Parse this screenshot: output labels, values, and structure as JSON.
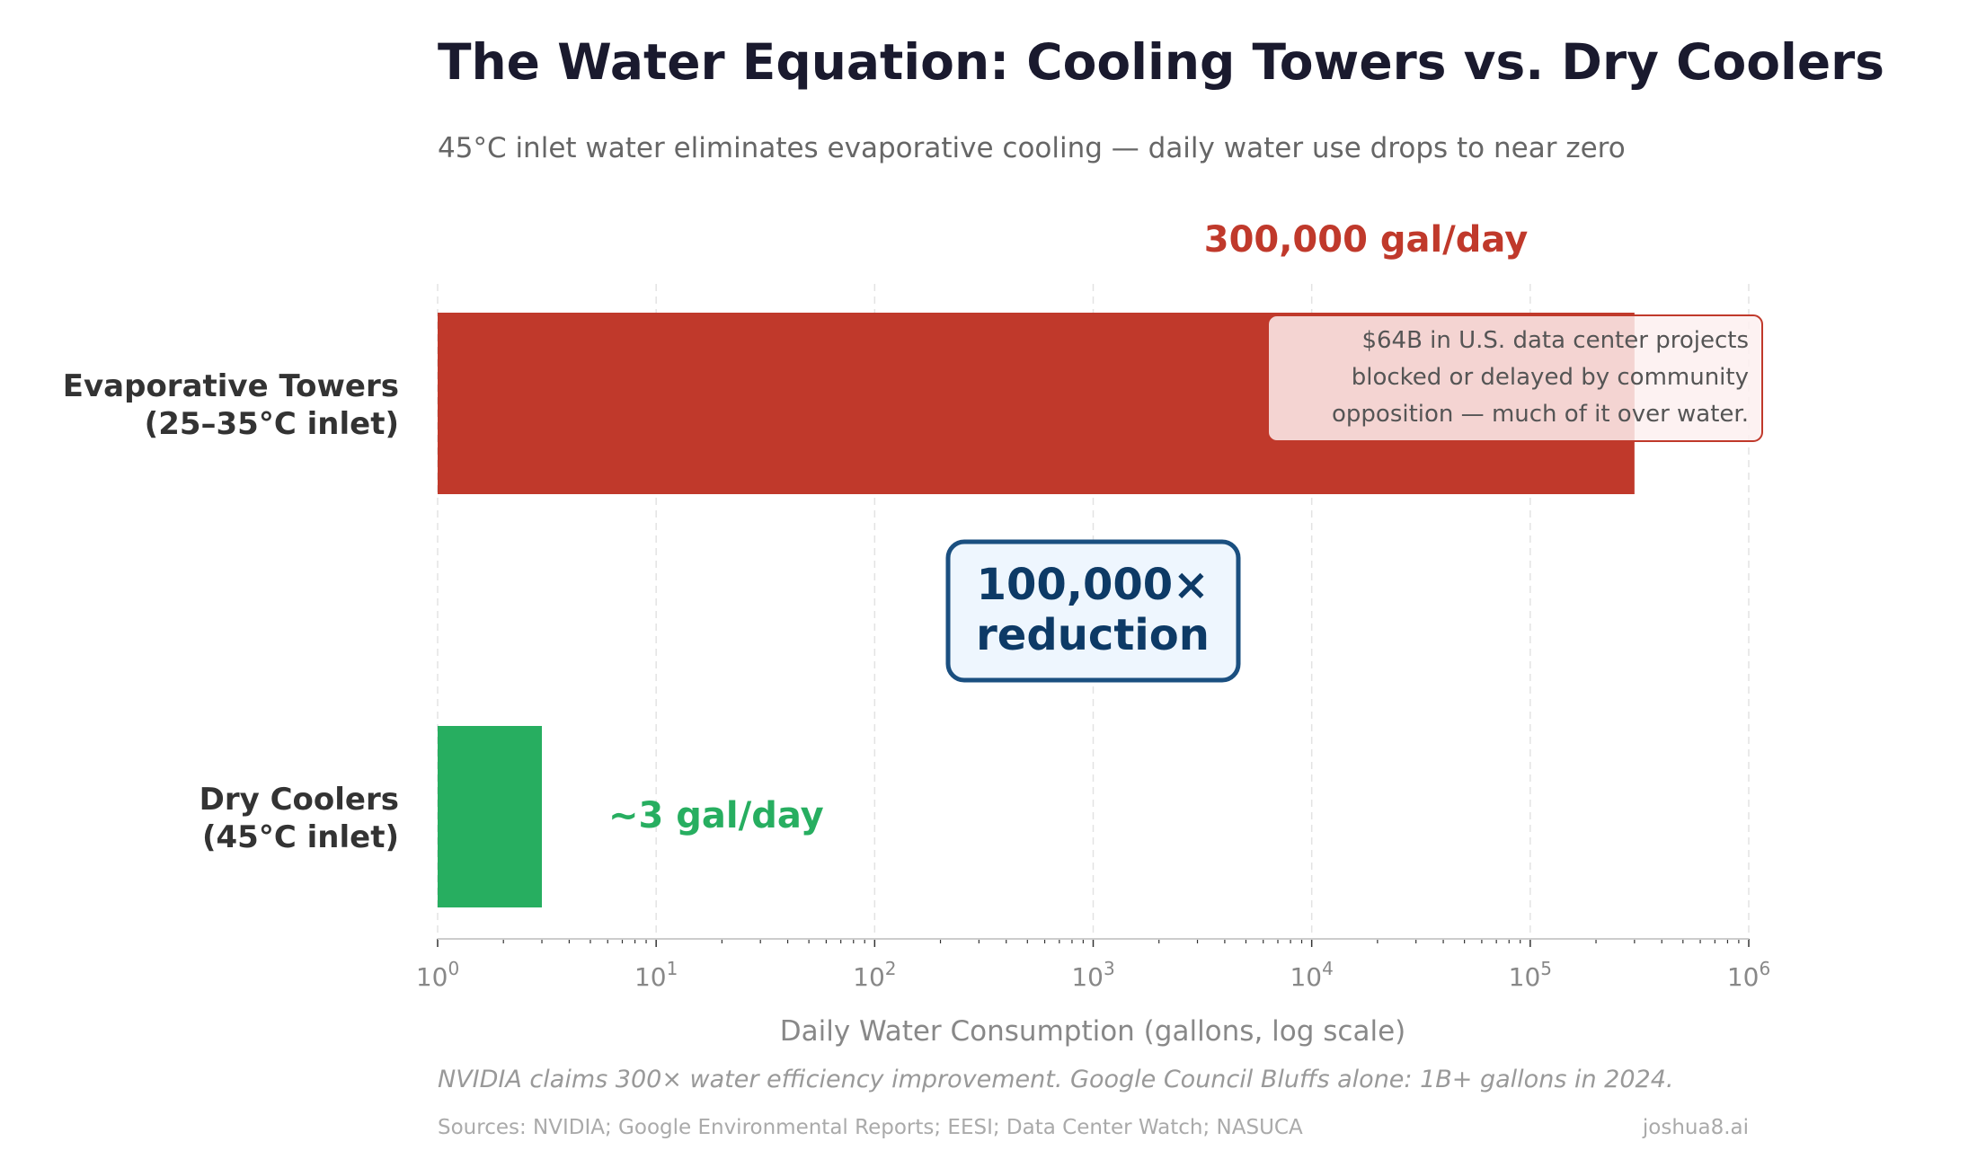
{
  "chart_data": {
    "type": "bar",
    "orientation": "horizontal",
    "title": "The Water Equation: Cooling Towers vs. Dry Coolers",
    "subtitle": "45°C inlet water eliminates evaporative cooling — daily water use drops to near zero",
    "categories": [
      "Evaporative Towers\n(25–35°C inlet)",
      "Dry Coolers\n(45°C inlet)"
    ],
    "category_lines": [
      [
        "Evaporative Towers",
        "(25–35°C inlet)"
      ],
      [
        "Dry Coolers",
        "(45°C inlet)"
      ]
    ],
    "values": [
      300000,
      3
    ],
    "colors": [
      "#c0392b",
      "#27ae60"
    ],
    "value_labels": [
      "300,000 gal/day",
      "~3 gal/day"
    ],
    "xlabel": "Daily Water Consumption (gallons, log scale)",
    "xscale": "log",
    "xlim": [
      1,
      1000000
    ],
    "xticks": [
      {
        "base": "10",
        "exp": "0",
        "value": 1
      },
      {
        "base": "10",
        "exp": "1",
        "value": 10
      },
      {
        "base": "10",
        "exp": "2",
        "value": 100
      },
      {
        "base": "10",
        "exp": "3",
        "value": 1000
      },
      {
        "base": "10",
        "exp": "4",
        "value": 10000
      },
      {
        "base": "10",
        "exp": "5",
        "value": 100000
      },
      {
        "base": "10",
        "exp": "6",
        "value": 1000000
      }
    ],
    "grid": "x, dashed",
    "annotations": {
      "reduction": [
        "100,000×",
        "reduction"
      ],
      "callout": [
        "$64B in U.S. data center projects",
        "blocked or delayed by community",
        "opposition — much of it over water."
      ]
    }
  },
  "footer": {
    "note": "NVIDIA claims 300× water efficiency improvement. Google Council Bluffs alone: 1B+ gallons in 2024.",
    "sources": "Sources: NVIDIA; Google Environmental Reports; EESI; Data Center Watch; NASUCA",
    "credit": "joshua8.ai"
  }
}
